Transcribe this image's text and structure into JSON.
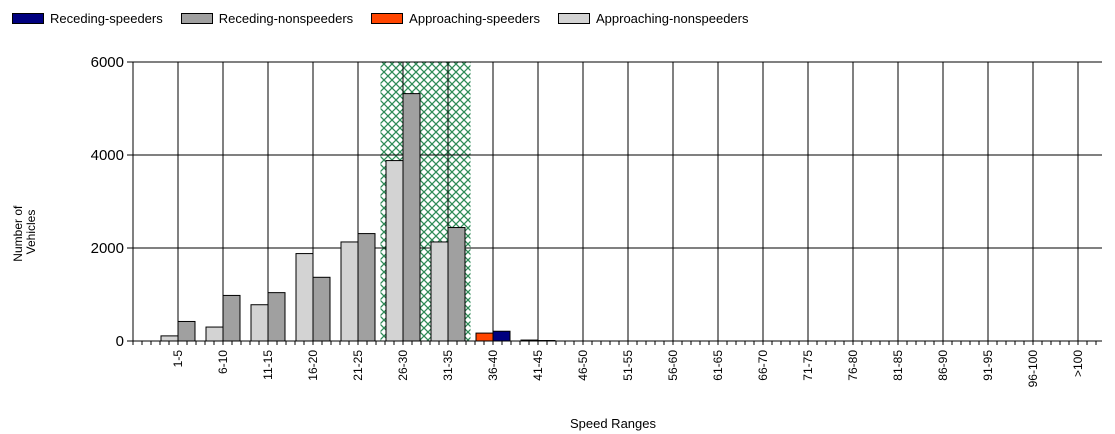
{
  "chart_data": {
    "type": "bar",
    "title": "",
    "xlabel": "Speed Ranges",
    "ylabel": "Number of Vehicles",
    "ylabel_lines": [
      "Number of",
      "Vehicles"
    ],
    "ylim": [
      0,
      6000
    ],
    "yticks": [
      0,
      2000,
      4000,
      6000
    ],
    "grid": true,
    "legend_position": "top-left",
    "categories": [
      "1-5",
      "6-10",
      "11-15",
      "16-20",
      "21-25",
      "26-30",
      "31-35",
      "36-40",
      "41-45",
      "46-50",
      "51-55",
      "56-60",
      "61-65",
      "66-70",
      "71-75",
      "76-80",
      "81-85",
      "86-90",
      "91-95",
      "96-100",
      ">100"
    ],
    "series": [
      {
        "name": "Receding-speeders",
        "color": "#00007F",
        "values": [
          0,
          0,
          0,
          0,
          0,
          0,
          0,
          210,
          10,
          0,
          0,
          0,
          0,
          0,
          0,
          0,
          0,
          0,
          0,
          0,
          0
        ]
      },
      {
        "name": "Receding-nonspeeders",
        "color": "#A0A0A0",
        "values": [
          420,
          980,
          1040,
          1370,
          2310,
          5320,
          2440,
          0,
          0,
          0,
          0,
          0,
          0,
          0,
          0,
          0,
          0,
          0,
          0,
          0,
          0
        ]
      },
      {
        "name": "Approaching-speeders",
        "color": "#FF4500",
        "values": [
          0,
          0,
          0,
          0,
          0,
          0,
          0,
          170,
          20,
          0,
          0,
          0,
          0,
          0,
          0,
          0,
          0,
          0,
          0,
          0,
          0
        ]
      },
      {
        "name": "Approaching-nonspeeders",
        "color": "#D3D3D3",
        "values": [
          110,
          300,
          780,
          1880,
          2130,
          3880,
          2130,
          0,
          0,
          0,
          0,
          0,
          0,
          0,
          0,
          0,
          0,
          0,
          0,
          0,
          0
        ]
      }
    ],
    "bar_order": [
      "Approaching-nonspeeders",
      "Receding-nonspeeders",
      "Approaching-speeders",
      "Receding-speeders"
    ],
    "highlight_range": {
      "from": "26-30",
      "to": "31-35",
      "color": "#2E8B57",
      "pattern": "crosshatch"
    }
  }
}
